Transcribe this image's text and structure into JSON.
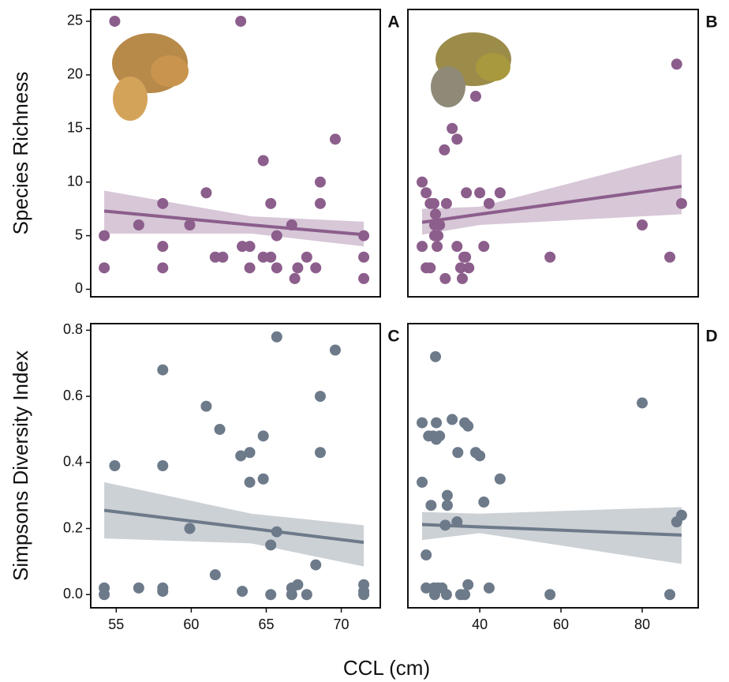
{
  "xlabel": "CCL (cm)",
  "chart_data": [
    {
      "type": "scatter",
      "label": "A",
      "ylabel": "Species Richness",
      "color": "#8c5e8c",
      "xlim": [
        53.3,
        72.6
      ],
      "ylim": [
        -0.7,
        26.1
      ],
      "yticks": [
        0,
        5,
        10,
        15,
        20,
        25
      ],
      "x": [
        54.2,
        54.2,
        54.9,
        56.5,
        58.1,
        58.1,
        58.1,
        59.9,
        61,
        61.6,
        62.1,
        63.3,
        63.4,
        63.9,
        63.9,
        64.8,
        64.8,
        65.3,
        65.3,
        65.7,
        65.7,
        66.7,
        66.9,
        67.1,
        67.7,
        68.3,
        68.6,
        68.6,
        69.6,
        71.5,
        71.5,
        71.5
      ],
      "values": [
        5,
        2,
        25,
        6,
        8,
        4,
        2,
        6,
        9,
        3,
        3,
        25,
        4,
        4,
        2,
        12,
        3,
        3,
        8,
        2,
        5,
        6,
        1,
        2,
        3,
        2,
        8,
        10,
        14,
        5,
        3,
        1
      ],
      "trend": {
        "x": [
          54.2,
          64,
          71.5
        ],
        "values": [
          7.3,
          6.0,
          5.1
        ],
        "lower": [
          5.2,
          5.2,
          4.0
        ],
        "upper": [
          9.2,
          6.8,
          6.3
        ]
      }
    },
    {
      "type": "scatter",
      "label": "B",
      "color": "#8c5e8c",
      "xlim": [
        22.3,
        93.8
      ],
      "ylim": [
        -0.7,
        26.1
      ],
      "x": [
        25.8,
        25.8,
        26.8,
        26.8,
        27.8,
        27.8,
        28.7,
        28.9,
        28.9,
        29.1,
        29.5,
        29.7,
        30.1,
        31.3,
        31.5,
        31.8,
        33.2,
        34.4,
        34.4,
        35.3,
        35.7,
        36.1,
        36.5,
        36.7,
        37.3,
        39,
        40,
        41,
        42.3,
        45,
        57.3,
        80,
        86.8,
        88.5,
        89.7
      ],
      "values": [
        10,
        4,
        9,
        2,
        8,
        2,
        8,
        6,
        5,
        7,
        4,
        5,
        6,
        13,
        1,
        8,
        15,
        14,
        4,
        2,
        1,
        3,
        3,
        9,
        2,
        18,
        9,
        4,
        8,
        9,
        3,
        6,
        3,
        21,
        8
      ],
      "trend": {
        "x": [
          25.8,
          40,
          89.7
        ],
        "values": [
          6.25,
          7.0,
          9.6
        ],
        "lower": [
          5.1,
          6.0,
          7.0
        ],
        "upper": [
          7.5,
          7.7,
          12.6
        ]
      }
    },
    {
      "type": "scatter",
      "label": "C",
      "ylabel": "Simpsons Diversity Index",
      "color": "#6d7a8a",
      "xlim": [
        53.3,
        72.6
      ],
      "ylim": [
        -0.04,
        0.82
      ],
      "yticks": [
        {
          "value": 0,
          "label": "0.0"
        },
        0.2,
        0.4,
        0.6,
        0.8
      ],
      "xticks": [
        55,
        60,
        65,
        70
      ],
      "x": [
        54.2,
        54.2,
        54.9,
        56.5,
        58.1,
        58.1,
        58.1,
        58.1,
        59.9,
        61,
        61.6,
        61.9,
        63.3,
        63.4,
        63.9,
        63.9,
        64.8,
        64.8,
        65.3,
        65.3,
        65.7,
        65.7,
        66.7,
        66.7,
        67.1,
        67.7,
        68.3,
        68.6,
        68.6,
        69.6,
        71.5,
        71.5,
        71.5
      ],
      "values": [
        0.02,
        0.0,
        0.39,
        0.02,
        0.68,
        0.39,
        0.02,
        0.01,
        0.2,
        0.57,
        0.06,
        0.5,
        0.42,
        0.01,
        0.43,
        0.34,
        0.48,
        0.35,
        0.15,
        0.0,
        0.19,
        0.78,
        0.02,
        0.0,
        0.03,
        0.0,
        0.09,
        0.6,
        0.43,
        0.74,
        0.03,
        0.01,
        0.0
      ],
      "trend": {
        "x": [
          54.2,
          64,
          71.5
        ],
        "values": [
          0.255,
          0.2,
          0.158
        ],
        "lower": [
          0.17,
          0.155,
          0.085
        ],
        "upper": [
          0.34,
          0.245,
          0.21
        ]
      }
    },
    {
      "type": "scatter",
      "label": "D",
      "color": "#6d7a8a",
      "xlim": [
        22.3,
        93.8
      ],
      "ylim": [
        -0.04,
        0.82
      ],
      "xticks": [
        40,
        60,
        80
      ],
      "x": [
        25.8,
        25.8,
        26.8,
        26.8,
        27.4,
        28,
        28.5,
        28.7,
        28.9,
        29.1,
        29.3,
        29.3,
        29.7,
        30.1,
        30.7,
        31.5,
        31.8,
        32,
        32,
        33.2,
        34.4,
        34.6,
        35.3,
        36.3,
        36.3,
        37.1,
        37.1,
        39,
        40,
        41,
        42.3,
        45,
        57.3,
        80,
        86.8,
        88.5,
        89.7
      ],
      "values": [
        0.52,
        0.34,
        0.12,
        0.02,
        0.48,
        0.27,
        0.48,
        0.02,
        0.0,
        0.72,
        0.52,
        0.47,
        0.02,
        0.48,
        0.02,
        0.21,
        0.0,
        0.3,
        0.27,
        0.53,
        0.22,
        0.43,
        0.0,
        0.0,
        0.52,
        0.51,
        0.03,
        0.43,
        0.42,
        0.28,
        0.02,
        0.35,
        0.0,
        0.58,
        0.0,
        0.22,
        0.24
      ],
      "trend": {
        "x": [
          25.8,
          40,
          89.7
        ],
        "values": [
          0.212,
          0.205,
          0.18
        ],
        "lower": [
          0.165,
          0.186,
          0.093
        ],
        "upper": [
          0.25,
          0.245,
          0.265
        ]
      }
    }
  ]
}
